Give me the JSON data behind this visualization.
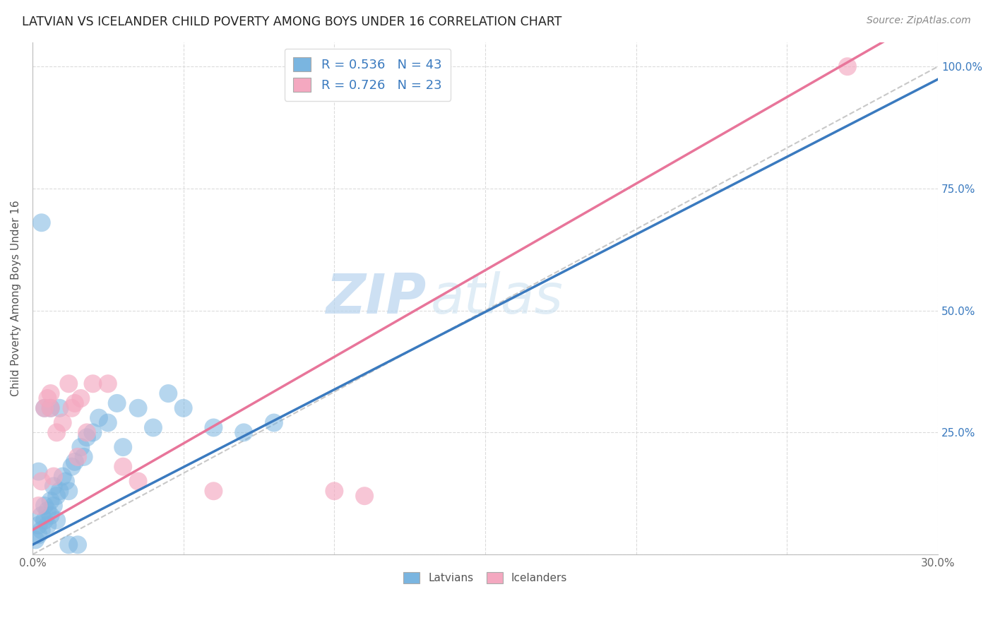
{
  "title": "LATVIAN VS ICELANDER CHILD POVERTY AMONG BOYS UNDER 16 CORRELATION CHART",
  "source": "Source: ZipAtlas.com",
  "ylabel": "Child Poverty Among Boys Under 16",
  "xlim": [
    0.0,
    0.3
  ],
  "ylim": [
    0.0,
    1.05
  ],
  "xticks": [
    0.0,
    0.05,
    0.1,
    0.15,
    0.2,
    0.25,
    0.3
  ],
  "xticklabels": [
    "0.0%",
    "",
    "",
    "",
    "",
    "",
    "30.0%"
  ],
  "yticks": [
    0.0,
    0.25,
    0.5,
    0.75,
    1.0
  ],
  "yticklabels": [
    "",
    "25.0%",
    "50.0%",
    "75.0%",
    "100.0%"
  ],
  "latvian_color": "#7ab5e0",
  "icelander_color": "#f4a8c0",
  "latvian_line_color": "#3a7abf",
  "icelander_line_color": "#e8759a",
  "latvian_R": 0.536,
  "latvian_N": 43,
  "icelander_R": 0.726,
  "icelander_N": 23,
  "watermark_zip": "ZIP",
  "watermark_atlas": "atlas",
  "legend_latvians": "Latvians",
  "legend_icelanders": "Icelanders",
  "ref_line_color": "#c8c8c8",
  "grid_color": "#d8d8d8",
  "latvian_line_intercept": 0.02,
  "latvian_line_slope": 3.18,
  "icelander_line_intercept": 0.05,
  "icelander_line_slope": 3.55,
  "latvian_points": [
    [
      0.001,
      0.03
    ],
    [
      0.002,
      0.04
    ],
    [
      0.002,
      0.06
    ],
    [
      0.003,
      0.05
    ],
    [
      0.003,
      0.08
    ],
    [
      0.004,
      0.07
    ],
    [
      0.004,
      0.1
    ],
    [
      0.005,
      0.06
    ],
    [
      0.005,
      0.09
    ],
    [
      0.006,
      0.08
    ],
    [
      0.006,
      0.11
    ],
    [
      0.007,
      0.1
    ],
    [
      0.007,
      0.14
    ],
    [
      0.008,
      0.07
    ],
    [
      0.008,
      0.12
    ],
    [
      0.009,
      0.13
    ],
    [
      0.01,
      0.16
    ],
    [
      0.011,
      0.15
    ],
    [
      0.012,
      0.13
    ],
    [
      0.013,
      0.18
    ],
    [
      0.014,
      0.19
    ],
    [
      0.016,
      0.22
    ],
    [
      0.017,
      0.2
    ],
    [
      0.018,
      0.24
    ],
    [
      0.02,
      0.25
    ],
    [
      0.022,
      0.28
    ],
    [
      0.025,
      0.27
    ],
    [
      0.028,
      0.31
    ],
    [
      0.03,
      0.22
    ],
    [
      0.035,
      0.3
    ],
    [
      0.04,
      0.26
    ],
    [
      0.045,
      0.33
    ],
    [
      0.05,
      0.3
    ],
    [
      0.06,
      0.26
    ],
    [
      0.07,
      0.25
    ],
    [
      0.08,
      0.27
    ],
    [
      0.002,
      0.17
    ],
    [
      0.004,
      0.3
    ],
    [
      0.006,
      0.3
    ],
    [
      0.009,
      0.3
    ],
    [
      0.012,
      0.02
    ],
    [
      0.015,
      0.02
    ],
    [
      0.003,
      0.68
    ]
  ],
  "icelander_points": [
    [
      0.002,
      0.1
    ],
    [
      0.003,
      0.15
    ],
    [
      0.004,
      0.3
    ],
    [
      0.005,
      0.32
    ],
    [
      0.006,
      0.3
    ],
    [
      0.006,
      0.33
    ],
    [
      0.007,
      0.16
    ],
    [
      0.008,
      0.25
    ],
    [
      0.01,
      0.27
    ],
    [
      0.012,
      0.35
    ],
    [
      0.013,
      0.3
    ],
    [
      0.014,
      0.31
    ],
    [
      0.015,
      0.2
    ],
    [
      0.016,
      0.32
    ],
    [
      0.018,
      0.25
    ],
    [
      0.02,
      0.35
    ],
    [
      0.025,
      0.35
    ],
    [
      0.03,
      0.18
    ],
    [
      0.035,
      0.15
    ],
    [
      0.06,
      0.13
    ],
    [
      0.11,
      0.12
    ],
    [
      0.1,
      0.13
    ],
    [
      0.27,
      1.0
    ]
  ]
}
